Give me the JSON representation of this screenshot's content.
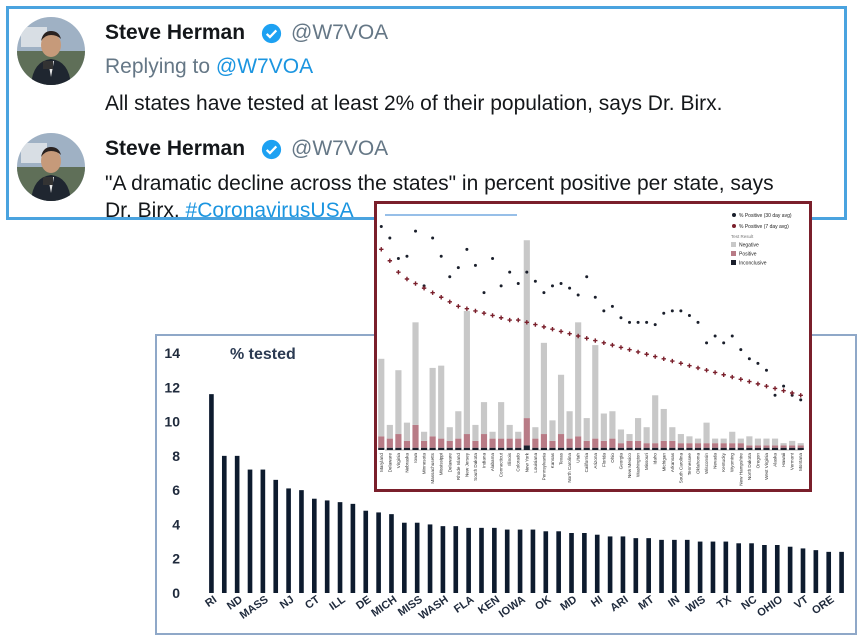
{
  "tweets": [
    {
      "name": "Steve Herman",
      "handle": "@W7VOA",
      "replying_label": "Replying to",
      "replying_handle": "@W7VOA",
      "text": "All states have tested at least 2% of their population, says Dr. Birx."
    },
    {
      "name": "Steve Herman",
      "handle": "@W7VOA",
      "text_line1": "\"A dramatic decline across the states\" in percent positive per state, says",
      "text_line2": "Dr. Birx.",
      "hashtag": "#CoronavirusUSA"
    }
  ],
  "colors": {
    "link": "#1b95e0",
    "tweet_border": "#4aa3df",
    "bar_dark": "#0d1b2e",
    "chart2_border": "#7a1f2b",
    "negative": "#c8c8c8",
    "positive": "#b87b86",
    "inconclusive": "#1a1f2b",
    "positive_30": "#1a1f2b",
    "positive_7": "#7a1f2b"
  },
  "icons": [
    "verified-badge-icon",
    "avatar-photo"
  ],
  "chart_data": [
    {
      "type": "bar",
      "title": "% tested",
      "ylim": [
        0,
        14
      ],
      "yticks": [
        0,
        2,
        4,
        6,
        8,
        10,
        12,
        14
      ],
      "xtick_labels": [
        "RI",
        "ND",
        "MASS",
        "NJ",
        "CT",
        "ILL",
        "DE",
        "MICH",
        "MISS",
        "WASH",
        "FLA",
        "KEN",
        "IOWA",
        "OK",
        "MD",
        "HI",
        "ARI",
        "MT",
        "IN",
        "WIS",
        "TX",
        "NC",
        "OHIO",
        "VT",
        "ORE"
      ],
      "values": [
        11.6,
        8.0,
        8.0,
        7.2,
        7.2,
        6.6,
        6.1,
        6.0,
        5.5,
        5.4,
        5.3,
        5.2,
        4.8,
        4.7,
        4.6,
        4.1,
        4.1,
        4.0,
        3.9,
        3.9,
        3.8,
        3.8,
        3.8,
        3.7,
        3.7,
        3.7,
        3.6,
        3.6,
        3.5,
        3.5,
        3.4,
        3.3,
        3.3,
        3.2,
        3.2,
        3.1,
        3.1,
        3.1,
        3.0,
        3.0,
        3.0,
        2.9,
        2.9,
        2.8,
        2.8,
        2.7,
        2.6,
        2.5,
        2.4,
        2.4
      ],
      "grid": false
    },
    {
      "type": "bar",
      "legend_placement": "top-right",
      "legend": {
        "series": [
          "% Positive (30 day avg)",
          "% Positive (7 day avg)"
        ],
        "test_result_title": "Test Result",
        "test_result_items": [
          "Negative",
          "Positive",
          "Inconclusive"
        ]
      },
      "categories": [
        "Maryland",
        "Delaware",
        "Virginia",
        "Nebraska",
        "Iowa",
        "Minnesota",
        "Massachusetts",
        "Mississippi",
        "Delaware",
        "Rhode Island",
        "New Jersey",
        "South Dakota",
        "Indiana",
        "Alabama",
        "Connecticut",
        "Illinois",
        "Colorado",
        "New York",
        "Louisiana",
        "Pennsylvania",
        "Kansas",
        "Texas",
        "North Carolina",
        "Utah",
        "California",
        "Arizona",
        "Florida",
        "Ohio",
        "Georgia",
        "New Mexico",
        "Washington",
        "Missouri",
        "Idaho",
        "Michigan",
        "Arkansas",
        "South Carolina",
        "Tennessee",
        "Oklahoma",
        "Wisconsin",
        "Nevada",
        "Kentucky",
        "Wyoming",
        "New Hampshire",
        "North Dakota",
        "Oregon",
        "West Virginia",
        "Alaska",
        "Hawaii",
        "Vermont",
        "Montana"
      ],
      "negative": [
        34,
        6,
        28,
        8,
        45,
        4,
        30,
        32,
        6,
        12,
        54,
        7,
        14,
        3,
        16,
        6,
        3,
        78,
        5,
        40,
        9,
        26,
        12,
        50,
        10,
        41,
        12,
        12,
        6,
        3,
        10,
        7,
        21,
        14,
        6,
        4,
        3,
        2,
        9,
        2,
        2,
        5,
        2,
        4,
        3,
        3,
        3,
        1,
        2,
        1
      ],
      "positive": [
        5,
        4,
        6,
        3,
        10,
        3,
        5,
        4,
        3,
        4,
        6,
        3,
        6,
        4,
        4,
        4,
        4,
        12,
        4,
        6,
        3,
        6,
        4,
        5,
        3,
        4,
        3,
        4,
        2,
        3,
        3,
        2,
        2,
        3,
        3,
        2,
        2,
        2,
        2,
        2,
        2,
        2,
        2,
        1,
        1,
        1,
        1,
        1,
        1,
        1
      ],
      "inconclusive": [
        1,
        1,
        1,
        1,
        1,
        1,
        1,
        1,
        1,
        1,
        1,
        1,
        1,
        1,
        1,
        1,
        1,
        2,
        1,
        1,
        1,
        1,
        1,
        1,
        1,
        1,
        1,
        1,
        1,
        1,
        1,
        1,
        1,
        1,
        1,
        1,
        1,
        1,
        1,
        1,
        1,
        1,
        1,
        1,
        1,
        1,
        1,
        1,
        1,
        1
      ],
      "positive_30_day": [
        98,
        93,
        84,
        85,
        96,
        72,
        93,
        85,
        76,
        80,
        88,
        81,
        69,
        84,
        72,
        78,
        73,
        78,
        74,
        69,
        72,
        73,
        71,
        68,
        76,
        67,
        61,
        63,
        58,
        56,
        56,
        56,
        55,
        60,
        61,
        61,
        59,
        56,
        47,
        50,
        47,
        50,
        44,
        40,
        38,
        35,
        24,
        28,
        24,
        22
      ],
      "positive_7_day": [
        88,
        83,
        78,
        75,
        73,
        71,
        69,
        67,
        65,
        63,
        62,
        61,
        60,
        59,
        58,
        57,
        57,
        56,
        55,
        54,
        53,
        52,
        51,
        50,
        49,
        48,
        47,
        46,
        45,
        44,
        43,
        42,
        41,
        40,
        39,
        38,
        37,
        36,
        35,
        34,
        33,
        32,
        31,
        30,
        29,
        28,
        27,
        26,
        25,
        24
      ]
    }
  ]
}
